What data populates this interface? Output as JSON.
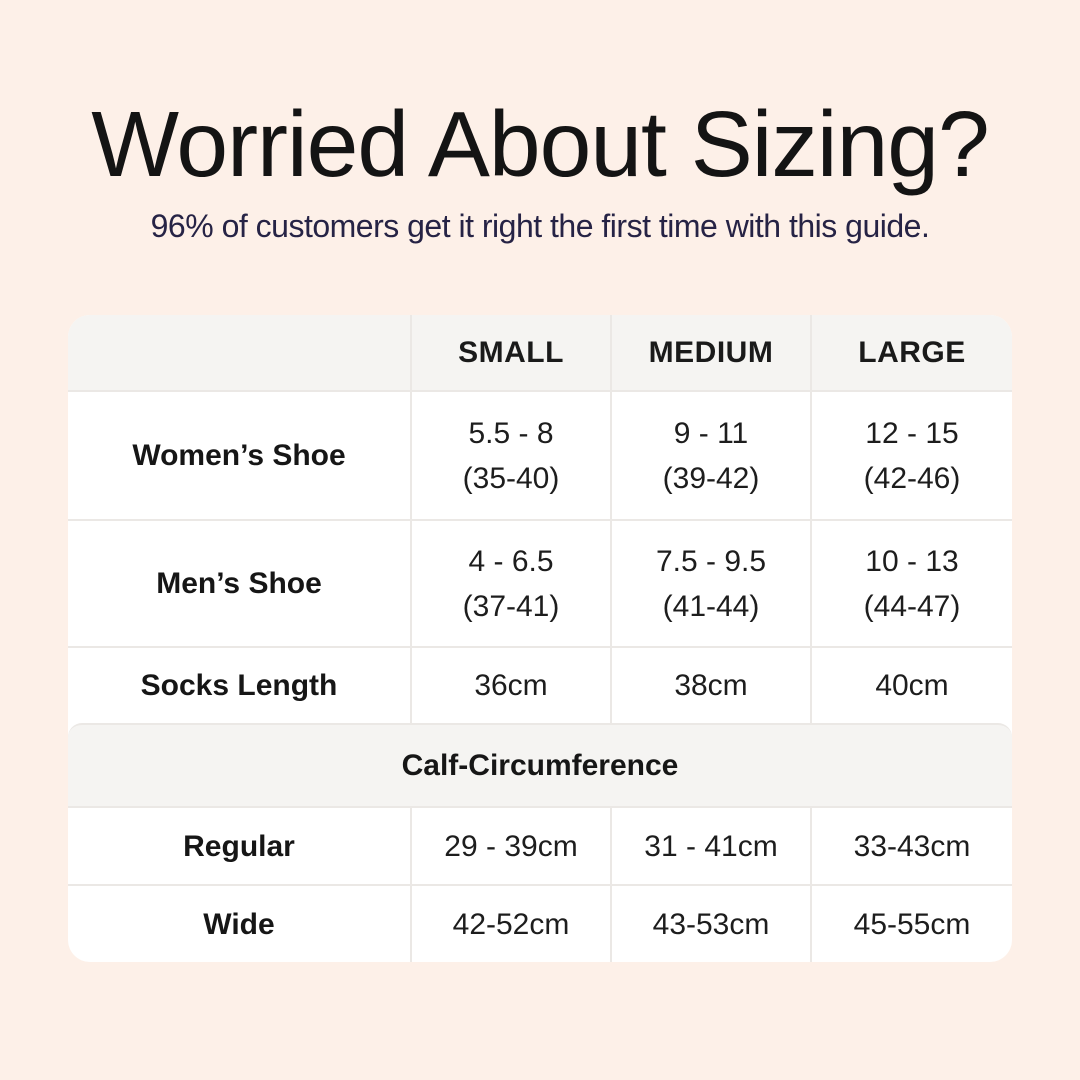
{
  "header": {
    "title": "Worried About Sizing?",
    "subtitle": "96% of customers get it right the first time with this guide."
  },
  "chart_data": {
    "type": "table",
    "title": "Worried About Sizing?",
    "subtitle": "96% of customers get it right the first time with this guide.",
    "columns": [
      "",
      "SMALL",
      "MEDIUM",
      "LARGE"
    ],
    "rows": [
      {
        "label": "Women’s Shoe",
        "small": [
          "5.5 - 8",
          "(35-40)"
        ],
        "medium": [
          "9 - 11",
          "(39-42)"
        ],
        "large": [
          "12 - 15",
          "(42-46)"
        ]
      },
      {
        "label": "Men’s Shoe",
        "small": [
          "4 - 6.5",
          "(37-41)"
        ],
        "medium": [
          "7.5 - 9.5",
          "(41-44)"
        ],
        "large": [
          "10 - 13",
          "(44-47)"
        ]
      },
      {
        "label": "Socks Length",
        "small": [
          "36cm"
        ],
        "medium": [
          "38cm"
        ],
        "large": [
          "40cm"
        ]
      }
    ],
    "section": {
      "header": "Calf-Circumference",
      "rows": [
        {
          "label": "Regular",
          "small": [
            "29 - 39cm"
          ],
          "medium": [
            "31 - 41cm"
          ],
          "large": [
            "33-43cm"
          ]
        },
        {
          "label": "Wide",
          "small": [
            "42-52cm"
          ],
          "medium": [
            "43-53cm"
          ],
          "large": [
            "45-55cm"
          ]
        }
      ]
    }
  },
  "colors": {
    "page_background": "#fdf0e8",
    "title_text": "#141414",
    "subtitle_text": "#262345",
    "table_background": "#ffffff",
    "header_band_background": "#f5f4f2",
    "divider": "#ebe8e5",
    "cell_text": "#1d1d1d"
  }
}
